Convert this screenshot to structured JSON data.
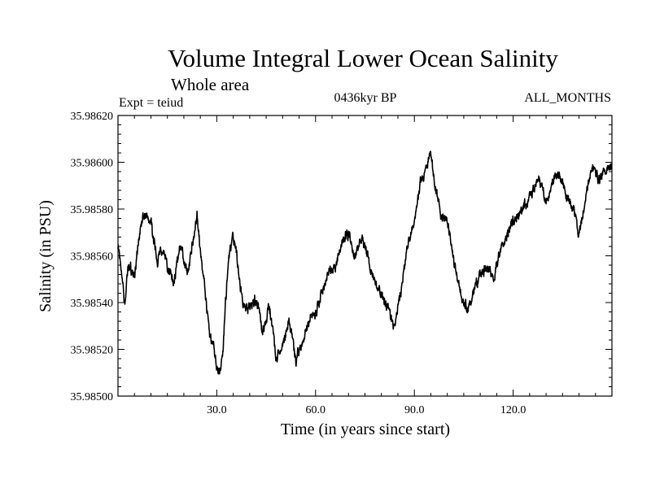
{
  "chart_data": {
    "type": "line",
    "title": "Volume Integral Lower Ocean Salinity",
    "subtitle": "Whole area",
    "expt_label": "Expt = teiud",
    "period_label": "0436kyr BP",
    "months_label": "ALL_MONTHS",
    "xlabel": "Time (in years since start)",
    "ylabel": "Salinity (in PSU)",
    "xlim": [
      0,
      150
    ],
    "ylim": [
      35.985,
      35.9862
    ],
    "x_ticks": [
      30,
      60,
      90,
      120
    ],
    "x_tick_labels": [
      "30.0",
      "60.0",
      "90.0",
      "120.0"
    ],
    "y_ticks": [
      35.985,
      35.9852,
      35.9854,
      35.9856,
      35.9858,
      35.986,
      35.9862
    ],
    "y_tick_labels": [
      "35.98500",
      "35.98520",
      "35.98540",
      "35.98560",
      "35.98580",
      "35.98600",
      "35.98620"
    ],
    "series": [
      {
        "name": "salinity",
        "color": "#000000",
        "anchors": {
          "x": [
            0,
            1,
            2,
            3,
            5,
            7,
            8,
            10,
            12,
            14,
            15,
            17,
            19,
            21,
            23,
            24,
            25,
            26,
            27,
            28,
            29,
            30,
            31,
            32,
            33,
            34,
            35,
            36,
            37,
            38,
            40,
            42,
            44,
            46,
            47,
            48,
            50,
            52,
            54,
            56,
            58,
            60,
            62,
            64,
            66,
            68,
            70,
            72,
            74,
            76,
            78,
            80,
            82,
            84,
            86,
            88,
            90,
            92,
            94,
            95,
            96,
            98,
            100,
            102,
            104,
            106,
            107,
            108,
            110,
            112,
            114,
            116,
            118,
            120,
            122,
            124,
            126,
            128,
            130,
            132,
            134,
            136,
            138,
            140,
            142,
            144,
            146,
            148,
            150
          ],
          "y": [
            35.98565,
            35.98555,
            35.9854,
            35.98555,
            35.98552,
            35.98575,
            35.98578,
            35.98574,
            35.98558,
            35.98562,
            35.98555,
            35.98548,
            35.98565,
            35.98552,
            35.98568,
            35.98578,
            35.98562,
            35.9855,
            35.98535,
            35.98525,
            35.98522,
            35.98512,
            35.9851,
            35.98522,
            35.98548,
            35.98562,
            35.98568,
            35.98562,
            35.98548,
            35.98538,
            35.98538,
            35.98542,
            35.98528,
            35.98538,
            35.98528,
            35.98515,
            35.98522,
            35.98532,
            35.98515,
            35.98522,
            35.98532,
            35.98535,
            35.98545,
            35.98552,
            35.98555,
            35.98565,
            35.9857,
            35.98558,
            35.98568,
            35.9856,
            35.98548,
            35.98543,
            35.98538,
            35.98528,
            35.98545,
            35.98565,
            35.98575,
            35.98592,
            35.98598,
            35.98604,
            35.98592,
            35.98578,
            35.98575,
            35.98558,
            35.98545,
            35.98538,
            35.98538,
            35.98545,
            35.98552,
            35.98555,
            35.9855,
            35.98562,
            35.98568,
            35.98575,
            35.98578,
            35.98583,
            35.98588,
            35.98593,
            35.98582,
            35.98592,
            35.98595,
            35.98586,
            35.98582,
            35.9857,
            35.98586,
            35.98598,
            35.98592,
            35.98596,
            35.98598
          ]
        }
      }
    ]
  }
}
